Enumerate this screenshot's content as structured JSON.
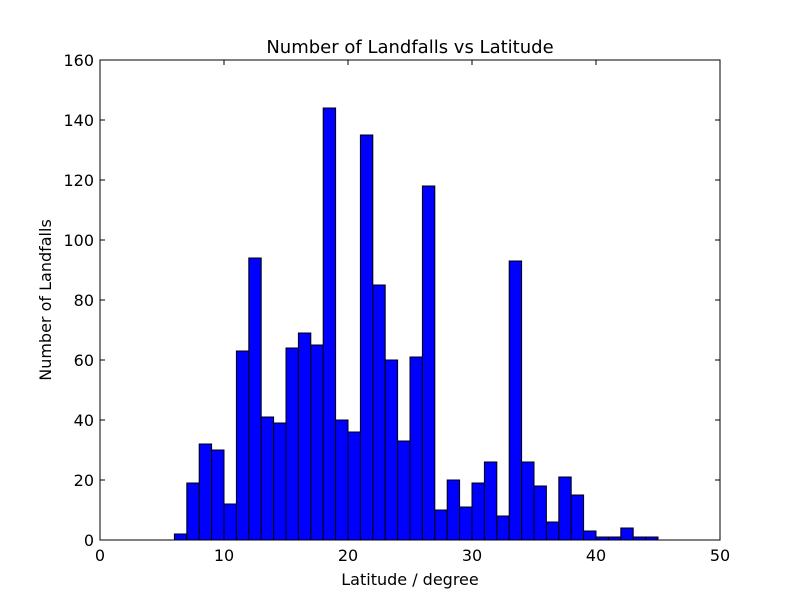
{
  "chart_data": {
    "type": "bar",
    "title": "Number of Landfalls vs Latitude",
    "xlabel": "Latitude / degree",
    "ylabel": "Number of Landfalls",
    "xlim": [
      0,
      50
    ],
    "ylim": [
      0,
      160
    ],
    "xticks": [
      "0",
      "10",
      "20",
      "30",
      "40",
      "50"
    ],
    "yticks": [
      "0",
      "20",
      "40",
      "60",
      "80",
      "100",
      "120",
      "140",
      "160"
    ],
    "bin_width": 1,
    "bins": [
      6,
      7,
      8,
      9,
      10,
      11,
      12,
      13,
      14,
      15,
      16,
      17,
      18,
      19,
      20,
      21,
      22,
      23,
      24,
      25,
      26,
      27,
      28,
      29,
      30,
      31,
      32,
      33,
      34,
      35,
      36,
      37,
      38,
      39,
      40,
      41,
      42,
      43,
      44
    ],
    "values": [
      2,
      19,
      32,
      30,
      12,
      63,
      94,
      41,
      39,
      64,
      69,
      65,
      144,
      40,
      36,
      135,
      85,
      60,
      33,
      61,
      118,
      10,
      20,
      11,
      19,
      26,
      8,
      93,
      26,
      18,
      6,
      21,
      15,
      3,
      1,
      1,
      4,
      1,
      1
    ],
    "bar_color": "#0000ff",
    "edge_color": "#000000",
    "grid": false,
    "legend": "none"
  }
}
